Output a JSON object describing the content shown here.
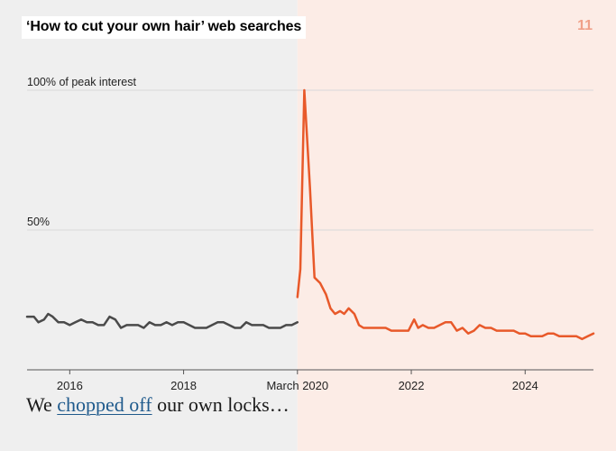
{
  "title": "‘How to cut your own hair’ web searches",
  "page_number": "11",
  "caption": {
    "before": "We ",
    "link": "chopped off",
    "after": " our own locks…"
  },
  "colors": {
    "before_line": "#4a4a4a",
    "after_line": "#e8592a",
    "before_bg": "#efefef",
    "after_bg": "#fcece6",
    "page_number": "#f0a088",
    "link": "#1f5a8c",
    "gridline": "#d9d9d9",
    "axis": "#555555"
  },
  "chart_data": {
    "type": "line",
    "title": "‘How to cut your own hair’ web searches",
    "xlabel": "",
    "ylabel": "",
    "ylim": [
      0,
      100
    ],
    "grid": true,
    "y_ticks": [
      {
        "value": 100,
        "label": "100% of peak interest"
      },
      {
        "value": 50,
        "label": "50%"
      }
    ],
    "x_ticks": [
      {
        "value": 2016.0,
        "label": "2016"
      },
      {
        "value": 2018.0,
        "label": "2018"
      },
      {
        "value": 2020.0,
        "label": "March 2020"
      },
      {
        "value": 2022.0,
        "label": "2022"
      },
      {
        "value": 2024.0,
        "label": "2024"
      }
    ],
    "xlim": [
      2015.25,
      2025.2
    ],
    "split_x": 2020.0,
    "series": [
      {
        "segment": "before",
        "x": [
          2015.25,
          2015.37,
          2015.45,
          2015.55,
          2015.62,
          2015.7,
          2015.8,
          2015.9,
          2016.0,
          2016.1,
          2016.2,
          2016.3,
          2016.4,
          2016.5,
          2016.6,
          2016.7,
          2016.8,
          2016.9,
          2017.0,
          2017.1,
          2017.2,
          2017.3,
          2017.4,
          2017.5,
          2017.6,
          2017.7,
          2017.8,
          2017.9,
          2018.0,
          2018.1,
          2018.2,
          2018.3,
          2018.4,
          2018.5,
          2018.6,
          2018.7,
          2018.8,
          2018.9,
          2019.0,
          2019.1,
          2019.2,
          2019.3,
          2019.4,
          2019.5,
          2019.6,
          2019.7,
          2019.8,
          2019.9,
          2020.0
        ],
        "values": [
          19,
          19,
          17,
          18,
          20,
          19,
          17,
          17,
          16,
          17,
          18,
          17,
          17,
          16,
          16,
          19,
          18,
          15,
          16,
          16,
          16,
          15,
          17,
          16,
          16,
          17,
          16,
          17,
          17,
          16,
          15,
          15,
          15,
          16,
          17,
          17,
          16,
          15,
          15,
          17,
          16,
          16,
          16,
          15,
          15,
          15,
          16,
          16,
          17
        ]
      },
      {
        "segment": "after",
        "x": [
          2020.0,
          2020.05,
          2020.12,
          2020.22,
          2020.3,
          2020.4,
          2020.5,
          2020.58,
          2020.66,
          2020.75,
          2020.82,
          2020.9,
          2021.0,
          2021.08,
          2021.16,
          2021.25,
          2021.35,
          2021.45,
          2021.55,
          2021.65,
          2021.75,
          2021.85,
          2021.95,
          2022.05,
          2022.12,
          2022.2,
          2022.3,
          2022.4,
          2022.5,
          2022.6,
          2022.7,
          2022.8,
          2022.9,
          2023.0,
          2023.1,
          2023.2,
          2023.3,
          2023.4,
          2023.5,
          2023.6,
          2023.7,
          2023.8,
          2023.9,
          2024.0,
          2024.1,
          2024.2,
          2024.3,
          2024.4,
          2024.5,
          2024.6,
          2024.7,
          2024.8,
          2024.9,
          2025.0,
          2025.1,
          2025.2
        ],
        "values": [
          26,
          36,
          100,
          65,
          33,
          31,
          27,
          22,
          20,
          21,
          20,
          22,
          20,
          16,
          15,
          15,
          15,
          15,
          15,
          14,
          14,
          14,
          14,
          18,
          15,
          16,
          15,
          15,
          16,
          17,
          17,
          14,
          15,
          13,
          14,
          16,
          15,
          15,
          14,
          14,
          14,
          14,
          13,
          13,
          12,
          12,
          12,
          13,
          13,
          12,
          12,
          12,
          12,
          11,
          12,
          13
        ]
      }
    ]
  }
}
